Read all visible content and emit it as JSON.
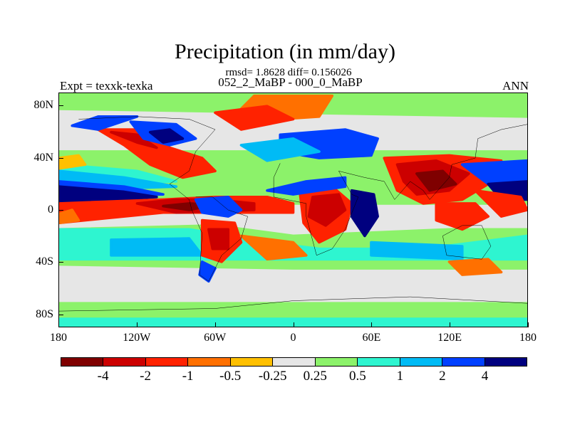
{
  "title": "Precipitation (in mm/day)",
  "stats": "rmsd= 1.8628 diff= 0.156026",
  "subtitle": "052_2_MaBP - 000_0_MaBP",
  "expt": "Expt = texxk-texka",
  "season": "ANN",
  "y_ticks": [
    {
      "lat": 80,
      "label": "80N"
    },
    {
      "lat": 40,
      "label": "40N"
    },
    {
      "lat": 0,
      "label": "0"
    },
    {
      "lat": -40,
      "label": "40S"
    },
    {
      "lat": -80,
      "label": "80S"
    }
  ],
  "x_ticks": [
    {
      "lon": -180,
      "label": "180"
    },
    {
      "lon": -120,
      "label": "120W"
    },
    {
      "lon": -60,
      "label": "60W"
    },
    {
      "lon": 0,
      "label": "0"
    },
    {
      "lon": 60,
      "label": "60E"
    },
    {
      "lon": 120,
      "label": "120E"
    },
    {
      "lon": 180,
      "label": "180"
    }
  ],
  "colorbar": {
    "colors": [
      "#7f0000",
      "#cc0000",
      "#ff2200",
      "#ff7000",
      "#ffc000",
      "#e6e6e6",
      "#8cf26a",
      "#2ef5d0",
      "#00bbf5",
      "#0040ff",
      "#00007f"
    ],
    "labels": [
      "-4",
      "-2",
      "-1",
      "-0.5",
      "-0.25",
      "0.25",
      "0.5",
      "1",
      "2",
      "4"
    ]
  }
}
